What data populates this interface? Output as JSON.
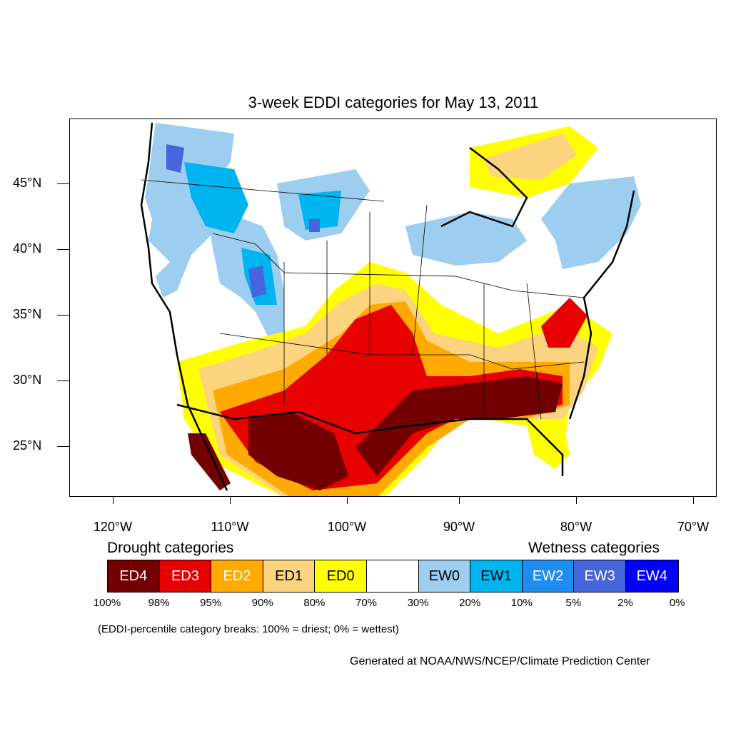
{
  "title": "3-week EDDI categories for May 13, 2011",
  "latitude_labels": [
    "45°N",
    "40°N",
    "35°N",
    "30°N",
    "25°N"
  ],
  "longitude_labels": [
    "120°W",
    "110°W",
    "100°W",
    "90°W",
    "80°W",
    "70°W"
  ],
  "legend": {
    "drought_heading": "Drought categories",
    "wetness_heading": "Wetness categories",
    "categories": [
      {
        "label": "ED4",
        "color": "#730000",
        "text_color": "#ffffff"
      },
      {
        "label": "ED3",
        "color": "#e60000",
        "text_color": "#ffffff"
      },
      {
        "label": "ED2",
        "color": "#ffaa00",
        "text_color": "#ffffff"
      },
      {
        "label": "ED1",
        "color": "#fcd37f",
        "text_color": "#000000"
      },
      {
        "label": "ED0",
        "color": "#ffff00",
        "text_color": "#000000"
      },
      {
        "label": "",
        "color": "#ffffff",
        "text_color": "#000000"
      },
      {
        "label": "EW0",
        "color": "#9dcdef",
        "text_color": "#000000"
      },
      {
        "label": "EW1",
        "color": "#00b4f0",
        "text_color": "#000000"
      },
      {
        "label": "EW2",
        "color": "#1e8cf0",
        "text_color": "#ffffff"
      },
      {
        "label": "EW3",
        "color": "#4664dc",
        "text_color": "#ffffff"
      },
      {
        "label": "EW4",
        "color": "#0000ff",
        "text_color": "#ffffff"
      }
    ],
    "percentile_breaks": [
      "100%",
      "98%",
      "95%",
      "90%",
      "80%",
      "70%",
      "30%",
      "20%",
      "10%",
      "5%",
      "2%",
      "0%"
    ]
  },
  "note": "(EDDI-percentile category breaks: 100% = driest; 0% = wettest)",
  "credit": "Generated at NOAA/NWS/NCEP/Climate Prediction Center"
}
